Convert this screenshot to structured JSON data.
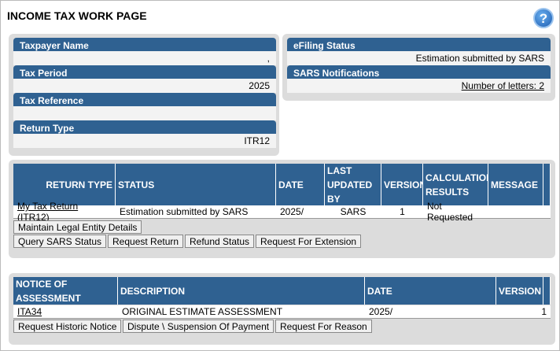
{
  "header": {
    "title": "INCOME TAX WORK PAGE",
    "help": "?"
  },
  "taxpayer_panel": {
    "fields": [
      {
        "label": "Taxpayer Name",
        "value": ","
      },
      {
        "label": "Tax Period",
        "value": "2025"
      },
      {
        "label": "Tax Reference"
      },
      {
        "label": "Return Type",
        "value": "ITR12"
      }
    ]
  },
  "status_panel": {
    "fields": [
      {
        "label": "eFiling Status",
        "value": "Estimation submitted by SARS"
      },
      {
        "label": "SARS Notifications",
        "value": "Number of letters: 2"
      }
    ]
  },
  "returns_table": {
    "columns": [
      "RETURN TYPE",
      "STATUS",
      "DATE",
      "LAST UPDATED BY",
      "VERSION",
      "CALCULATION RESULTS",
      "MESSAGE"
    ],
    "rows": [
      [
        "My Tax Return (ITR12)",
        "Estimation submitted by SARS",
        "2025/",
        "SARS",
        "1",
        "Not Requested"
      ]
    ],
    "buttons": [
      [
        "Maintain Legal Entity Details"
      ],
      [
        "Query SARS Status",
        "Request Return",
        "Refund Status",
        "Request For Extension"
      ]
    ]
  },
  "assessment_table": {
    "columns": [
      "NOTICE OF ASSESSMENT",
      "DESCRIPTION",
      "DATE",
      "VERSION"
    ],
    "rows": [
      [
        "ITA34",
        "ORIGINAL ESTIMATE ASSESSMENT",
        "2025/",
        "1"
      ]
    ],
    "buttons": [
      [
        "Request Historic Notice",
        "Dispute \\ Suspension Of Payment",
        "Request For Reason"
      ]
    ]
  }
}
